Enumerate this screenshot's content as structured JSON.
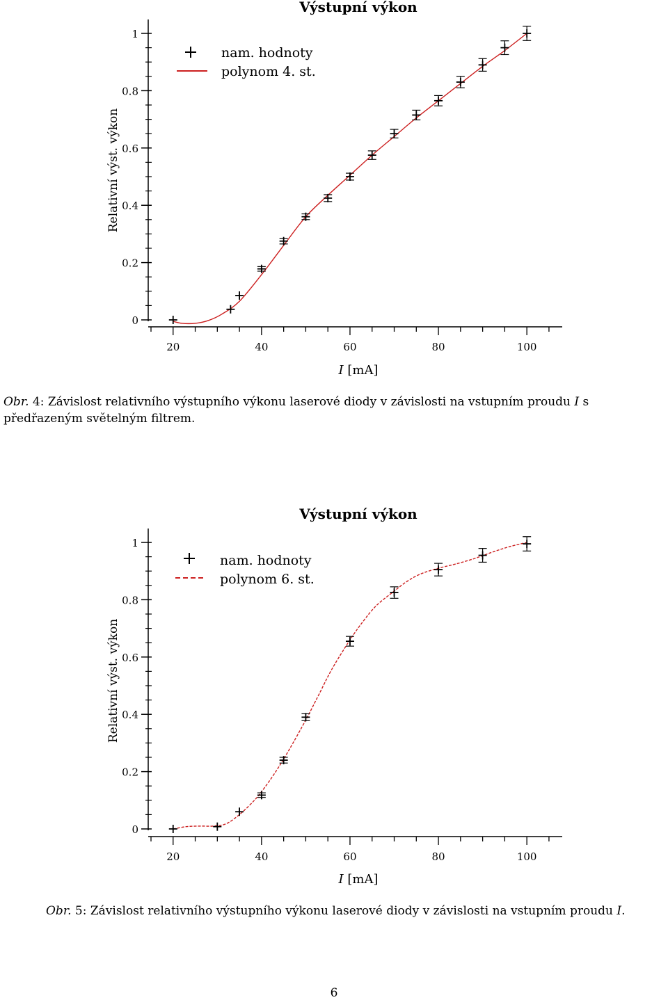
{
  "charts": [
    {
      "title": "Výstupní výkon",
      "ylabel": "Relativní výst. výkon",
      "xlabel_var": "I",
      "xlabel_unit": "[mA]",
      "legend_points": "nam. hodnoty",
      "legend_fit": "polynom 4. st."
    },
    {
      "title": "Výstupní výkon",
      "ylabel": "Relativní výst. výkon",
      "xlabel_var": "I",
      "xlabel_unit": "[mA]",
      "legend_points": "nam. hodnoty",
      "legend_fit": "polynom 6. st."
    }
  ],
  "captions": [
    {
      "lead": "Obr.",
      "number": "4:",
      "text_before": "Závislost relativního výstupního výkonu laserové diody v závislosti na vstupním proudu",
      "var": "I",
      "text_after": "s předřazeným světelným filtrem."
    },
    {
      "lead": "Obr.",
      "number": "5:",
      "text_before": "Závislost relativního výstupního výkonu laserové diody v závislosti na vstupním proudu",
      "var": "I",
      "text_after": "."
    }
  ],
  "page_number": "6",
  "chart_data": [
    {
      "type": "scatter",
      "title": "Výstupní výkon",
      "xlabel": "I [mA]",
      "ylabel": "Relativní výst. výkon",
      "xlim": [
        15,
        108
      ],
      "ylim": [
        0,
        1.03
      ],
      "x_ticks": [
        20,
        40,
        60,
        80,
        100
      ],
      "y_ticks": [
        0,
        0.2,
        0.4,
        0.6,
        0.8,
        1
      ],
      "y_tick_labels": [
        "0",
        "0.2",
        "0.4",
        "0.6",
        "0.8",
        "1"
      ],
      "fit_color": "#cc1f1f",
      "fit_style": "solid",
      "legend": "top-left",
      "series": [
        {
          "name": "nam. hodnoty",
          "x": [
            20,
            33,
            35,
            40,
            45,
            50,
            55,
            60,
            65,
            70,
            75,
            80,
            85,
            90,
            95,
            100
          ],
          "y": [
            0.0,
            0.037,
            0.085,
            0.178,
            0.275,
            0.36,
            0.425,
            0.5,
            0.575,
            0.65,
            0.715,
            0.765,
            0.83,
            0.89,
            0.95,
            1.0
          ],
          "yerr": [
            0.005,
            0.005,
            0.007,
            0.008,
            0.01,
            0.01,
            0.012,
            0.012,
            0.015,
            0.015,
            0.017,
            0.018,
            0.02,
            0.022,
            0.024,
            0.025
          ]
        },
        {
          "name": "polynom 4. st.",
          "x": [
            20,
            22,
            25,
            28,
            31,
            35,
            40,
            45,
            50,
            55,
            60,
            65,
            70,
            75,
            80,
            85,
            90,
            95,
            100
          ],
          "y": [
            -0.005,
            -0.012,
            -0.012,
            -0.002,
            0.02,
            0.065,
            0.158,
            0.26,
            0.36,
            0.435,
            0.505,
            0.575,
            0.64,
            0.705,
            0.765,
            0.825,
            0.885,
            0.94,
            1.0
          ]
        }
      ]
    },
    {
      "type": "scatter",
      "title": "Výstupní výkon",
      "xlabel": "I [mA]",
      "ylabel": "Relativní výst. výkon",
      "xlim": [
        15,
        108
      ],
      "ylim": [
        0,
        1.03
      ],
      "x_ticks": [
        20,
        40,
        60,
        80,
        100
      ],
      "y_ticks": [
        0,
        0.2,
        0.4,
        0.6,
        0.8,
        1
      ],
      "y_tick_labels": [
        "0",
        "0.2",
        "0.4",
        "0.6",
        "0.8",
        "1"
      ],
      "fit_color": "#cc1f1f",
      "fit_style": "dashed",
      "legend": "top-left",
      "series": [
        {
          "name": "nam. hodnoty",
          "x": [
            20,
            30,
            35,
            40,
            45,
            50,
            60,
            70,
            80,
            90,
            100
          ],
          "y": [
            0.0,
            0.008,
            0.06,
            0.118,
            0.24,
            0.39,
            0.655,
            0.825,
            0.905,
            0.955,
            0.995
          ],
          "yerr": [
            0.005,
            0.005,
            0.007,
            0.008,
            0.01,
            0.012,
            0.017,
            0.02,
            0.022,
            0.024,
            0.025
          ]
        },
        {
          "name": "polynom 6. st.",
          "x": [
            20,
            23,
            26,
            29,
            32,
            35,
            38,
            40,
            43,
            46,
            50,
            53,
            56,
            60,
            63,
            66,
            70,
            73,
            76,
            80,
            84,
            88,
            92,
            96,
            100
          ],
          "y": [
            0.0,
            0.008,
            0.01,
            0.01,
            0.018,
            0.05,
            0.094,
            0.13,
            0.195,
            0.27,
            0.38,
            0.47,
            0.56,
            0.66,
            0.725,
            0.78,
            0.83,
            0.865,
            0.89,
            0.91,
            0.925,
            0.943,
            0.965,
            0.985,
            1.0
          ]
        }
      ]
    }
  ]
}
